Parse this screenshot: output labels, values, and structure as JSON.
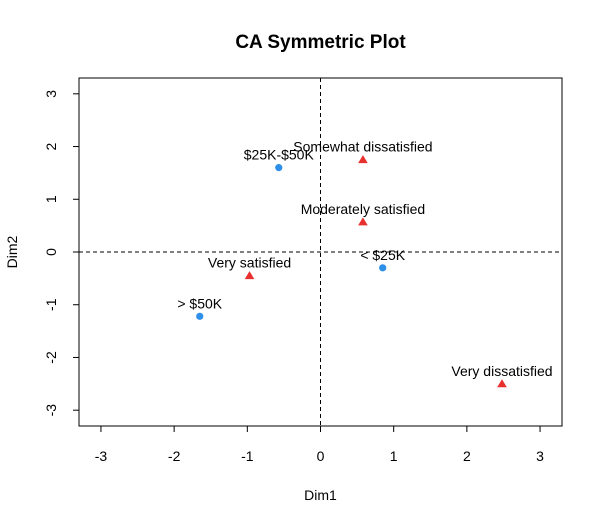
{
  "chart_data": {
    "type": "scatter",
    "title": "CA Symmetric Plot",
    "xlabel": "Dim1",
    "ylabel": "Dim2",
    "xlim": [
      -3.3,
      3.3
    ],
    "ylim": [
      -3.3,
      3.3
    ],
    "xticks": [
      -3,
      -2,
      -1,
      0,
      1,
      2,
      3
    ],
    "yticks": [
      -3,
      -2,
      -1,
      0,
      1,
      2,
      3
    ],
    "xtick_labels": [
      "-3",
      "-2",
      "-1",
      "0",
      "1",
      "2",
      "3"
    ],
    "ytick_labels": [
      "-3",
      "-2",
      "-1",
      "0",
      "1",
      "2",
      "3"
    ],
    "reference_lines": {
      "x": 0,
      "y": 0,
      "style": "dashed"
    },
    "grid": false,
    "series": [
      {
        "marker": "circle",
        "color": "#2E8FE8",
        "points": [
          {
            "label": "$25K-$50K",
            "x": -0.57,
            "y": 1.6
          },
          {
            "label": "< $25K",
            "x": 0.85,
            "y": -0.3
          },
          {
            "label": "> $50K",
            "x": -1.65,
            "y": -1.22
          }
        ]
      },
      {
        "marker": "triangle",
        "color": "#E8302E",
        "points": [
          {
            "label": "Somewhat dissatisfied",
            "x": 0.58,
            "y": 1.75
          },
          {
            "label": "Moderately satisfied",
            "x": 0.58,
            "y": 0.57
          },
          {
            "label": "Very satisfied",
            "x": -0.97,
            "y": -0.45
          },
          {
            "label": "Very dissatisfied",
            "x": 2.48,
            "y": -2.5
          }
        ]
      }
    ]
  }
}
